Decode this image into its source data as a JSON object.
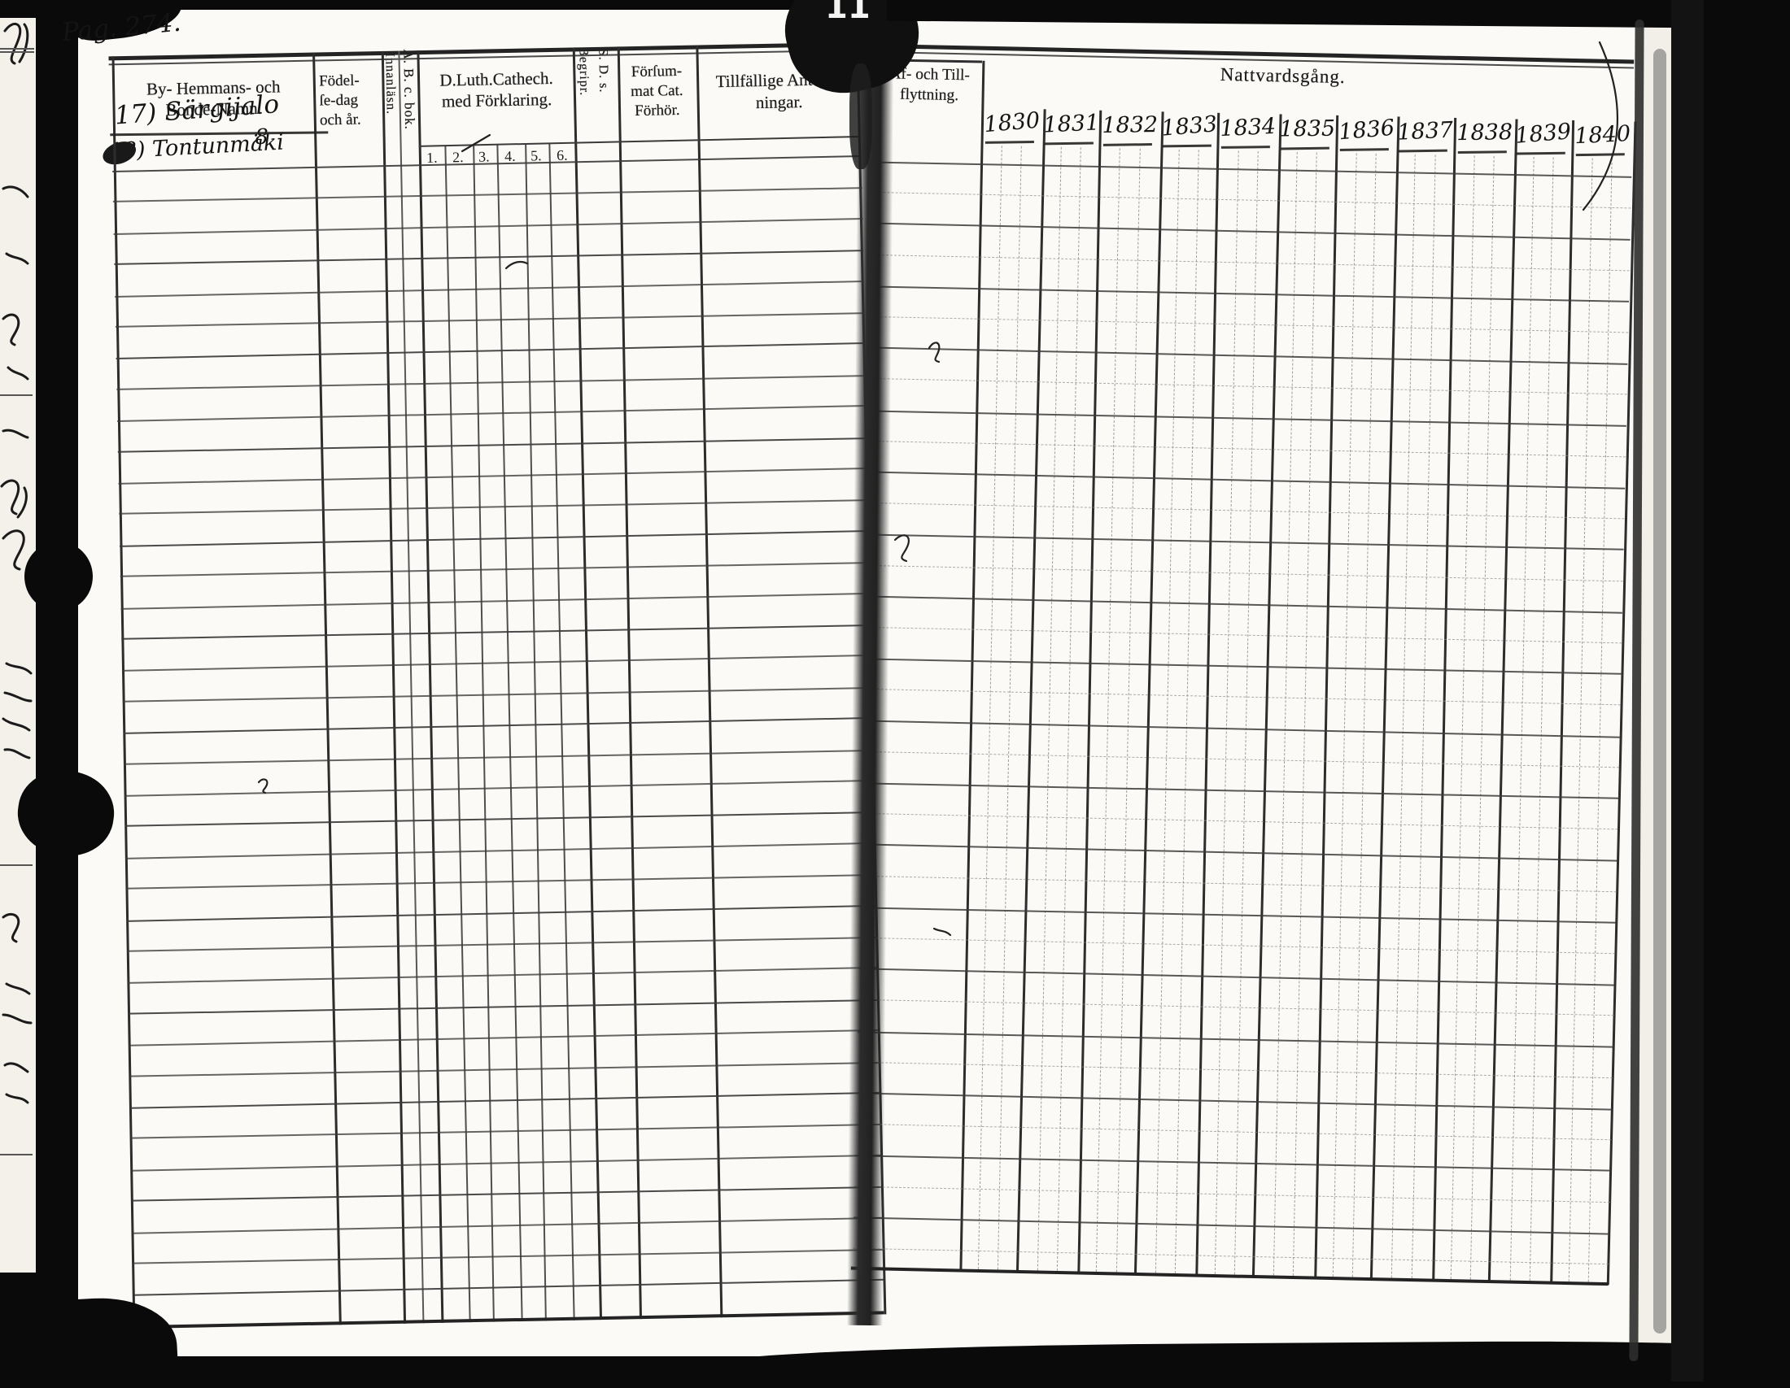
{
  "frame_number": "11",
  "handwritten": {
    "page_number": "Pag. 274.",
    "entries": [
      "17) Särgijalo",
      "8",
      "18) Tontunmäki"
    ]
  },
  "left_page": {
    "headers": {
      "name": [
        "By- Hemmans- och",
        "Bonde-Namn."
      ],
      "birth": [
        "Födel-",
        "ſe-dag",
        "och år."
      ],
      "reading_vertical": [
        "Innanläsn.",
        "A. B. c. bok."
      ],
      "catechism": [
        "D.Luth.Cathech.",
        "med Förklaring."
      ],
      "catechism_numbers": [
        "1.",
        "2.",
        "3.",
        "4.",
        "5.",
        "6."
      ],
      "comprehension_vertical": [
        "Begripr.",
        "S. D. s."
      ],
      "neglected": [
        "Förſum-",
        "mat Cat.",
        "Förhör."
      ],
      "notes": [
        "Tillfällige Anteck-",
        "ningar."
      ]
    }
  },
  "right_page": {
    "headers": {
      "moving": [
        "Af- och Till-",
        "flyttning."
      ],
      "communion": "Nattvardsgång."
    },
    "years": [
      "1830",
      "1831",
      "1832",
      "1833",
      "1834",
      "1835",
      "1836",
      "1837",
      "1838",
      "1839",
      "1840"
    ]
  },
  "colors": {
    "paper": "#fbfaf6",
    "ink": "#1e1e1e",
    "scan_border": "#0a0a0a"
  }
}
